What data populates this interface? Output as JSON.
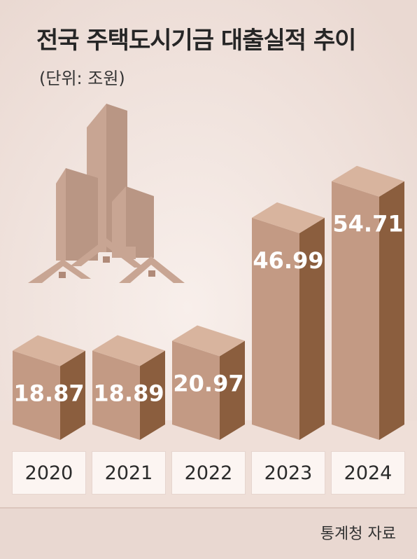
{
  "header": {
    "title": "전국 주택도시기금 대출실적 추이",
    "subtitle": "(단위: 조원)"
  },
  "footer": {
    "source": "통계청 자료"
  },
  "colors": {
    "background": "#f1e6e1",
    "bar_front": "#c39a84",
    "bar_side": "#8b5e3e",
    "bar_top": "#d8b49e",
    "building": "#c8a593"
  },
  "illustration": {
    "icon": "buildings-and-houses-icon"
  },
  "chart_data": {
    "type": "bar",
    "title": "전국 주택도시기금 대출실적 추이",
    "subtitle": "(단위: 조원)",
    "unit": "조원",
    "style": "3d-columns",
    "categories": [
      "2020",
      "2021",
      "2022",
      "2023",
      "2024"
    ],
    "values": [
      18.87,
      18.89,
      20.97,
      46.99,
      54.71
    ],
    "value_labels": [
      "18.87",
      "18.89",
      "20.97",
      "46.99",
      "54.71"
    ],
    "xlabel": "",
    "ylabel": "",
    "ylim": [
      0,
      60
    ],
    "grid": false,
    "legend": "none"
  }
}
